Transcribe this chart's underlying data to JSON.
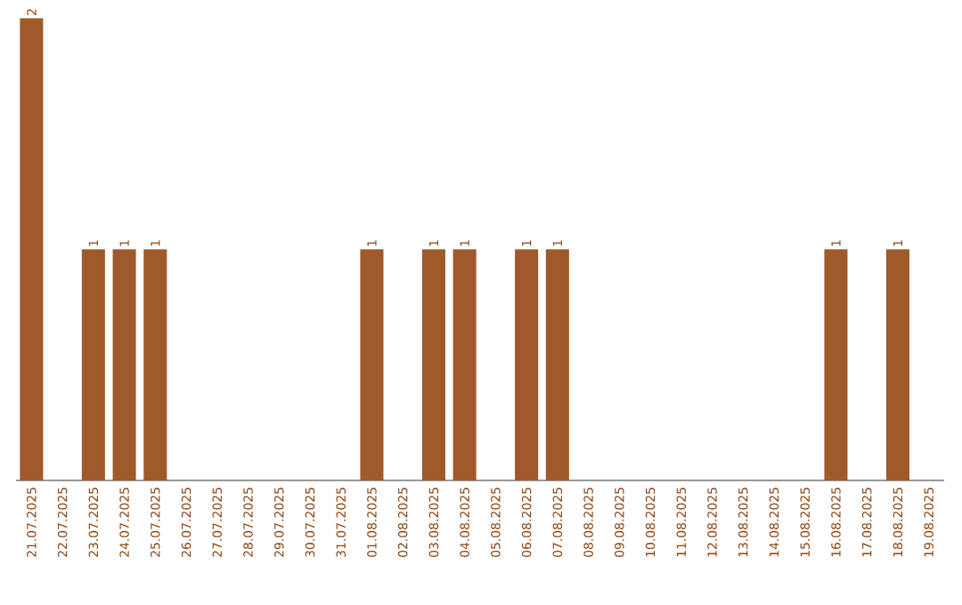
{
  "chart_data": {
    "type": "bar",
    "categories": [
      "21.07.2025",
      "22.07.2025",
      "23.07.2025",
      "24.07.2025",
      "25.07.2025",
      "26.07.2025",
      "27.07.2025",
      "28.07.2025",
      "29.07.2025",
      "30.07.2025",
      "31.07.2025",
      "01.08.2025",
      "02.08.2025",
      "03.08.2025",
      "04.08.2025",
      "05.08.2025",
      "06.08.2025",
      "07.08.2025",
      "08.08.2025",
      "09.08.2025",
      "10.08.2025",
      "11.08.2025",
      "12.08.2025",
      "13.08.2025",
      "14.08.2025",
      "15.08.2025",
      "16.08.2025",
      "17.08.2025",
      "18.08.2025",
      "19.08.2025"
    ],
    "values": [
      2,
      0,
      1,
      1,
      1,
      0,
      0,
      0,
      0,
      0,
      0,
      1,
      0,
      1,
      1,
      0,
      1,
      1,
      0,
      0,
      0,
      0,
      0,
      0,
      0,
      0,
      1,
      0,
      1,
      0
    ],
    "value_labels": [
      "2",
      null,
      "1",
      "1",
      "1",
      null,
      null,
      null,
      null,
      null,
      null,
      "1",
      null,
      "1",
      "1",
      null,
      "1",
      "1",
      null,
      null,
      null,
      null,
      null,
      null,
      null,
      null,
      "1",
      null,
      "1",
      null
    ],
    "color": "#a0592a"
  }
}
